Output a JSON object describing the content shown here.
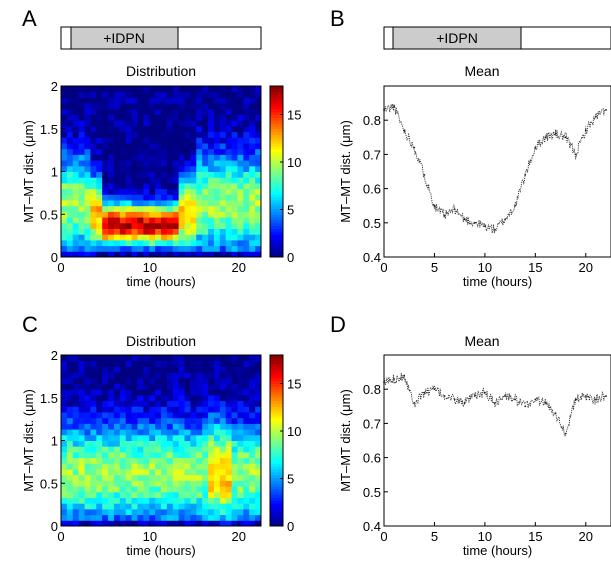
{
  "panels": {
    "A": {
      "letter": "A",
      "title": "Distribution"
    },
    "B": {
      "letter": "B",
      "title": "Mean"
    },
    "C": {
      "letter": "C",
      "title": "Distribution"
    },
    "D": {
      "letter": "D",
      "title": "Mean"
    }
  },
  "treatment_label": "+IDPN",
  "chart_data": [
    {
      "panel": "A",
      "type": "heatmap",
      "title": "Distribution",
      "xlabel": "time (hours)",
      "ylabel": "MT–MT dist. (μm)",
      "xlim": [
        0,
        22.5
      ],
      "ylim": [
        0,
        2
      ],
      "xticks": [
        "0",
        "10",
        "20"
      ],
      "yticks": [
        "0",
        "0.5",
        "1",
        "1.5",
        "2"
      ],
      "colorbar": {
        "range": [
          0,
          18
        ],
        "ticks": [
          "0",
          "5",
          "10",
          "15"
        ]
      },
      "treatment_bar": {
        "label": "+IDPN",
        "start_hours": 1,
        "end_hours": 13
      },
      "description": "Density concentrated near 0.3-0.5 μm (values ~15-18) during treatment (~5-13 h); broad spread 0.2-1.3 μm before and after"
    },
    {
      "panel": "B",
      "type": "line",
      "title": "Mean",
      "xlabel": "time (hours)",
      "ylabel": "MT–MT dist. (μm)",
      "xlim": [
        0,
        22.5
      ],
      "ylim": [
        0.4,
        0.9
      ],
      "xticks": [
        "0",
        "5",
        "10",
        "15",
        "20"
      ],
      "yticks": [
        "0.4",
        "0.5",
        "0.6",
        "0.7",
        "0.8"
      ],
      "treatment_bar": {
        "label": "+IDPN",
        "start_hours": 1,
        "end_hours": 13
      },
      "series": [
        {
          "x": [
            0,
            1,
            2,
            3,
            4,
            5,
            6,
            7,
            8,
            9,
            10,
            11,
            12,
            13,
            14,
            15,
            16,
            17,
            18,
            19,
            20,
            21,
            22
          ],
          "y": [
            0.83,
            0.84,
            0.77,
            0.72,
            0.64,
            0.55,
            0.52,
            0.54,
            0.51,
            0.5,
            0.49,
            0.48,
            0.51,
            0.55,
            0.64,
            0.72,
            0.75,
            0.76,
            0.75,
            0.7,
            0.77,
            0.81,
            0.83
          ]
        }
      ]
    },
    {
      "panel": "C",
      "type": "heatmap",
      "title": "Distribution",
      "xlabel": "time (hours)",
      "ylabel": "MT–MT dist. (μm)",
      "xlim": [
        0,
        22.5
      ],
      "ylim": [
        0,
        2
      ],
      "xticks": [
        "0",
        "10",
        "20"
      ],
      "yticks": [
        "0",
        "0.5",
        "1",
        "1.5",
        "2"
      ],
      "colorbar": {
        "range": [
          0,
          18
        ],
        "ticks": [
          "0",
          "5",
          "10",
          "15"
        ]
      },
      "description": "Broad, roughly uniform distribution 0.2-1.3 μm throughout (values ~6-12), slight hotspot near 0.6 μm at ~18 h"
    },
    {
      "panel": "D",
      "type": "line",
      "title": "Mean",
      "xlabel": "time (hours)",
      "ylabel": "MT–MT dist. (μm)",
      "xlim": [
        0,
        22.5
      ],
      "ylim": [
        0.4,
        0.9
      ],
      "xticks": [
        "0",
        "5",
        "10",
        "15",
        "20"
      ],
      "yticks": [
        "0.4",
        "0.5",
        "0.6",
        "0.7",
        "0.8"
      ],
      "series": [
        {
          "x": [
            0,
            1,
            2,
            3,
            4,
            5,
            6,
            7,
            8,
            9,
            10,
            11,
            12,
            13,
            14,
            15,
            16,
            17,
            18,
            19,
            20,
            21,
            22
          ],
          "y": [
            0.82,
            0.83,
            0.84,
            0.76,
            0.79,
            0.8,
            0.78,
            0.77,
            0.76,
            0.78,
            0.79,
            0.76,
            0.78,
            0.77,
            0.75,
            0.77,
            0.76,
            0.73,
            0.67,
            0.77,
            0.78,
            0.77,
            0.78
          ]
        }
      ]
    }
  ]
}
